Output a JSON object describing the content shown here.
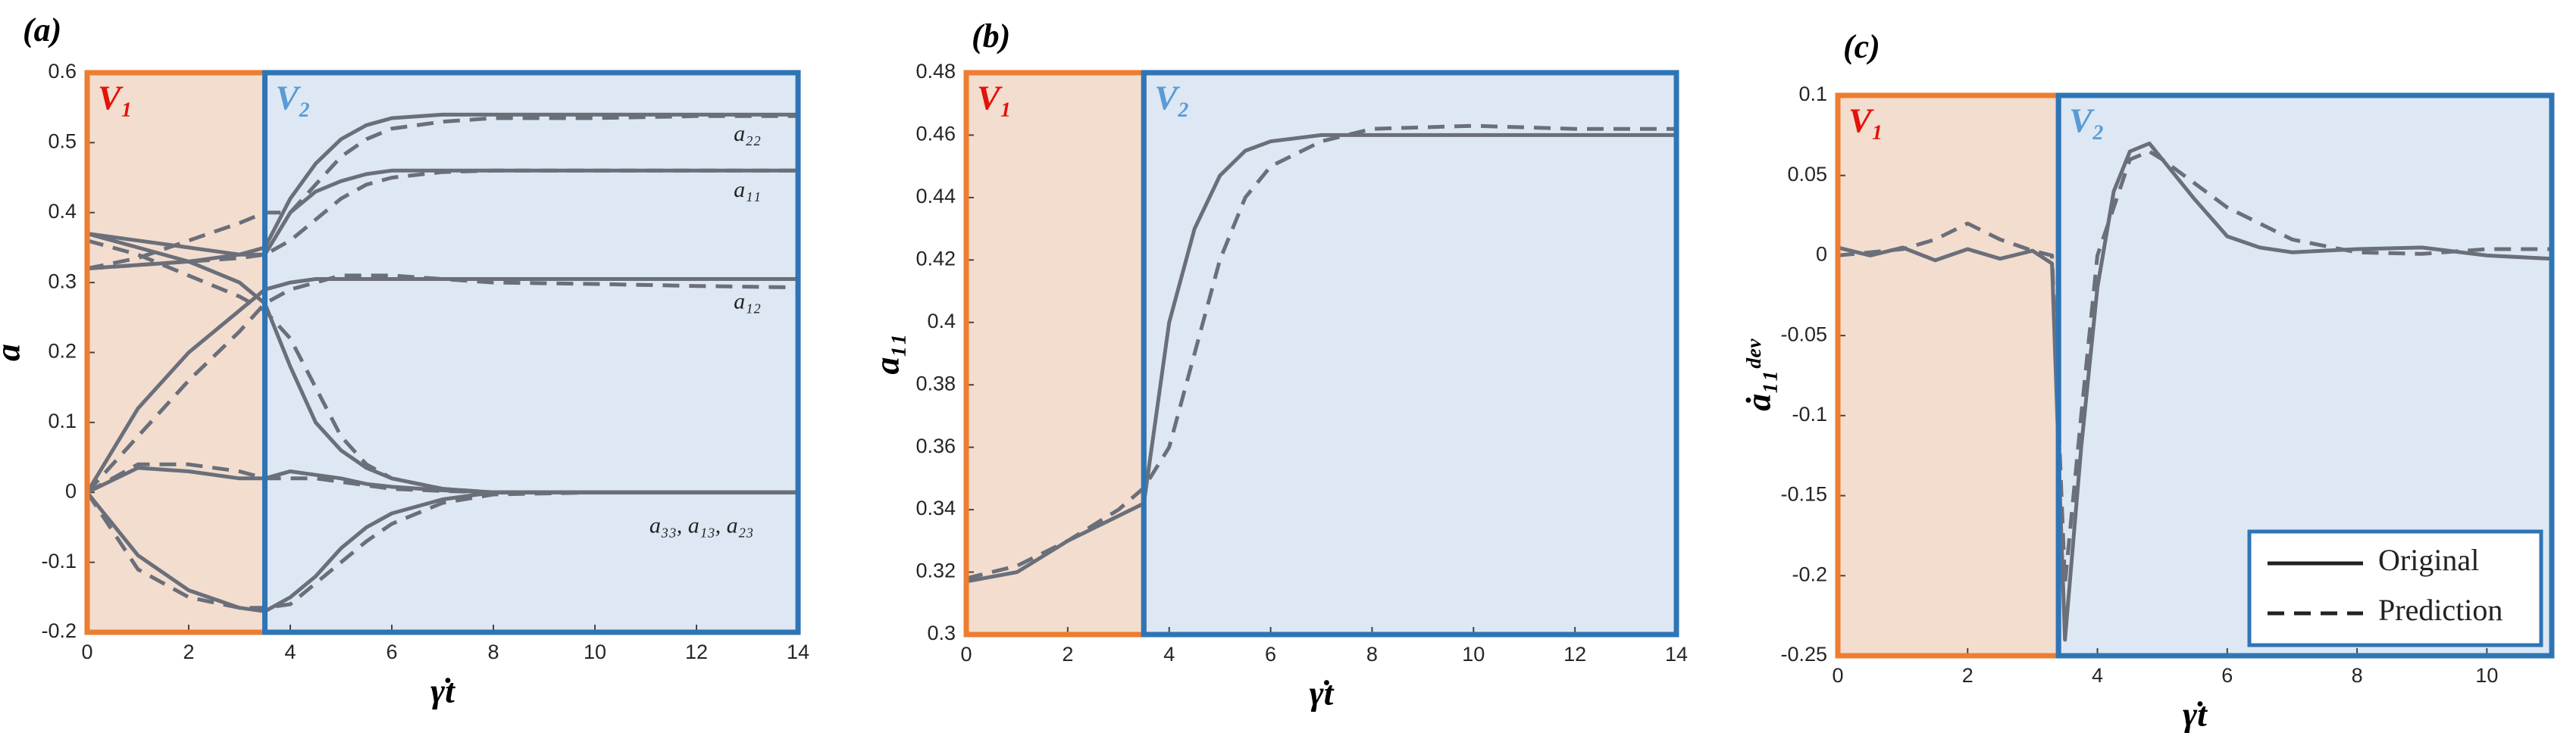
{
  "chart_data": [
    {
      "type": "line",
      "title": "(a)",
      "xlabel": "γ̇t",
      "ylabel": "a",
      "xlim": [
        0,
        14
      ],
      "xticks": [
        0,
        2,
        4,
        6,
        8,
        10,
        12,
        14
      ],
      "ylim": [
        -0.2,
        0.6
      ],
      "yticks": [
        -0.2,
        -0.1,
        0,
        0.1,
        0.2,
        0.3,
        0.4,
        0.5,
        0.6
      ],
      "regions": [
        {
          "label": "V₁",
          "xlim": [
            0,
            3.5
          ],
          "color": "#ed7d31",
          "fill": "#f3ddcf",
          "label_color": "#e3120b"
        },
        {
          "label": "V₂",
          "xlim": [
            3.5,
            14
          ],
          "color": "#2e75b6",
          "fill": "#dde8f4",
          "label_color": "#5b9bd5"
        }
      ],
      "annotations": [
        "a₂₂",
        "a₁₁",
        "a₁₂",
        "a₃₃, a₁₃, a₂₃"
      ],
      "x": [
        0,
        1,
        2,
        3,
        3.5,
        4,
        4.5,
        5,
        5.5,
        6,
        7,
        8,
        10,
        12,
        14
      ],
      "series": [
        {
          "color": "#6a6f7a",
          "dash": false,
          "values": [
            0.32,
            0.325,
            0.33,
            0.34,
            0.35,
            0.42,
            0.47,
            0.505,
            0.525,
            0.535,
            0.54,
            0.54,
            0.54,
            0.54,
            0.54
          ]
        },
        {
          "color": "#6a6f7a",
          "dash": true,
          "values": [
            0.32,
            0.335,
            0.36,
            0.385,
            0.4,
            0.4,
            0.44,
            0.48,
            0.505,
            0.52,
            0.53,
            0.535,
            0.535,
            0.538,
            0.538
          ]
        },
        {
          "color": "#6a6f7a",
          "dash": false,
          "values": [
            0.37,
            0.36,
            0.35,
            0.34,
            0.34,
            0.4,
            0.43,
            0.445,
            0.455,
            0.46,
            0.46,
            0.46,
            0.46,
            0.46,
            0.46
          ]
        },
        {
          "color": "#6a6f7a",
          "dash": true,
          "values": [
            0.32,
            0.325,
            0.33,
            0.335,
            0.34,
            0.36,
            0.39,
            0.42,
            0.44,
            0.45,
            0.458,
            0.46,
            0.46,
            0.46,
            0.46
          ]
        },
        {
          "color": "#6a6f7a",
          "dash": false,
          "values": [
            0,
            0.12,
            0.2,
            0.26,
            0.29,
            0.3,
            0.305,
            0.305,
            0.305,
            0.305,
            0.305,
            0.305,
            0.305,
            0.305,
            0.305
          ]
        },
        {
          "color": "#6a6f7a",
          "dash": true,
          "values": [
            0,
            0.08,
            0.16,
            0.23,
            0.27,
            0.29,
            0.3,
            0.31,
            0.31,
            0.31,
            0.305,
            0.3,
            0.298,
            0.295,
            0.293
          ]
        },
        {
          "color": "#6a6f7a",
          "dash": false,
          "values": [
            0.37,
            0.35,
            0.33,
            0.3,
            0.27,
            0.18,
            0.1,
            0.06,
            0.035,
            0.02,
            0.005,
            0,
            0,
            0,
            0
          ]
        },
        {
          "color": "#6a6f7a",
          "dash": true,
          "values": [
            0.36,
            0.34,
            0.31,
            0.28,
            0.26,
            0.22,
            0.15,
            0.08,
            0.04,
            0.02,
            0.005,
            0,
            0,
            0,
            0
          ]
        },
        {
          "color": "#6a6f7a",
          "dash": false,
          "values": [
            0,
            0.035,
            0.03,
            0.02,
            0.02,
            0.03,
            0.025,
            0.02,
            0.012,
            0.008,
            0.003,
            0,
            0,
            0,
            0
          ]
        },
        {
          "color": "#6a6f7a",
          "dash": true,
          "values": [
            0,
            0.04,
            0.04,
            0.03,
            0.02,
            0.02,
            0.02,
            0.015,
            0.01,
            0.005,
            0.002,
            0,
            0,
            0,
            0
          ]
        },
        {
          "color": "#6a6f7a",
          "dash": false,
          "values": [
            0,
            -0.09,
            -0.14,
            -0.165,
            -0.17,
            -0.15,
            -0.12,
            -0.08,
            -0.05,
            -0.03,
            -0.01,
            0,
            0,
            0,
            0
          ]
        },
        {
          "color": "#6a6f7a",
          "dash": true,
          "values": [
            0,
            -0.11,
            -0.15,
            -0.165,
            -0.165,
            -0.16,
            -0.13,
            -0.1,
            -0.07,
            -0.045,
            -0.015,
            -0.003,
            0,
            0,
            0
          ]
        }
      ]
    },
    {
      "type": "line",
      "title": "(b)",
      "xlabel": "γ̇t",
      "ylabel": "a₁₁",
      "xlim": [
        0,
        14
      ],
      "xticks": [
        0,
        2,
        4,
        6,
        8,
        10,
        12,
        14
      ],
      "ylim": [
        0.3,
        0.48
      ],
      "yticks": [
        0.3,
        0.32,
        0.34,
        0.36,
        0.38,
        0.4,
        0.42,
        0.44,
        0.46,
        0.48
      ],
      "regions": [
        {
          "label": "V₁",
          "xlim": [
            0,
            3.5
          ],
          "color": "#ed7d31",
          "fill": "#f3ddcf",
          "label_color": "#e3120b"
        },
        {
          "label": "V₂",
          "xlim": [
            3.5,
            14
          ],
          "color": "#2e75b6",
          "fill": "#dde8f4",
          "label_color": "#5b9bd5"
        }
      ],
      "x": [
        0,
        1,
        2,
        3,
        3.5,
        4,
        4.5,
        5,
        5.5,
        6,
        7,
        8,
        10,
        12,
        14
      ],
      "series": [
        {
          "color": "#6a6f7a",
          "dash": false,
          "values": [
            0.317,
            0.32,
            0.33,
            0.338,
            0.342,
            0.4,
            0.43,
            0.447,
            0.455,
            0.458,
            0.46,
            0.46,
            0.46,
            0.46,
            0.46
          ]
        },
        {
          "color": "#6a6f7a",
          "dash": true,
          "values": [
            0.318,
            0.322,
            0.33,
            0.34,
            0.347,
            0.36,
            0.39,
            0.42,
            0.44,
            0.45,
            0.458,
            0.462,
            0.463,
            0.462,
            0.462
          ]
        }
      ]
    },
    {
      "type": "line",
      "title": "(c)",
      "xlabel": "γ̇t",
      "ylabel": "ȧ₁₁ᵈᵉᵛ",
      "xlim": [
        0,
        11
      ],
      "xticks": [
        0,
        2,
        4,
        6,
        8,
        10
      ],
      "ylim": [
        -0.25,
        0.1
      ],
      "yticks": [
        -0.25,
        -0.2,
        -0.15,
        -0.1,
        -0.05,
        0,
        0.05,
        0.1
      ],
      "legend": "lower right",
      "regions": [
        {
          "label": "V₁",
          "xlim": [
            0,
            3.4
          ],
          "color": "#ed7d31",
          "fill": "#f3ddcf",
          "label_color": "#e3120b"
        },
        {
          "label": "V₂",
          "xlim": [
            3.4,
            11
          ],
          "color": "#2e75b6",
          "fill": "#dde8f4",
          "label_color": "#5b9bd5"
        }
      ],
      "x": [
        0,
        0.5,
        1,
        1.5,
        2,
        2.5,
        3,
        3.3,
        3.5,
        3.75,
        4,
        4.25,
        4.5,
        4.8,
        5,
        5.5,
        6,
        6.5,
        7,
        8,
        9,
        10,
        11
      ],
      "series": [
        {
          "name": "Original",
          "color": "#6a6f7a",
          "dash": false,
          "values": [
            0.005,
            0,
            0.005,
            -0.003,
            0.004,
            -0.002,
            0.003,
            -0.005,
            -0.24,
            -0.12,
            -0.02,
            0.04,
            0.065,
            0.07,
            0.06,
            0.035,
            0.012,
            0.005,
            0.002,
            0.004,
            0.005,
            0,
            -0.002
          ]
        },
        {
          "name": "Prediction",
          "color": "#6a6f7a",
          "dash": true,
          "values": [
            0,
            0.002,
            0.004,
            0.01,
            0.02,
            0.01,
            0.003,
            0,
            -0.205,
            -0.1,
            0,
            0.03,
            0.06,
            0.065,
            0.06,
            0.045,
            0.03,
            0.02,
            0.01,
            0.002,
            0.001,
            0.004,
            0.004
          ]
        }
      ]
    }
  ]
}
